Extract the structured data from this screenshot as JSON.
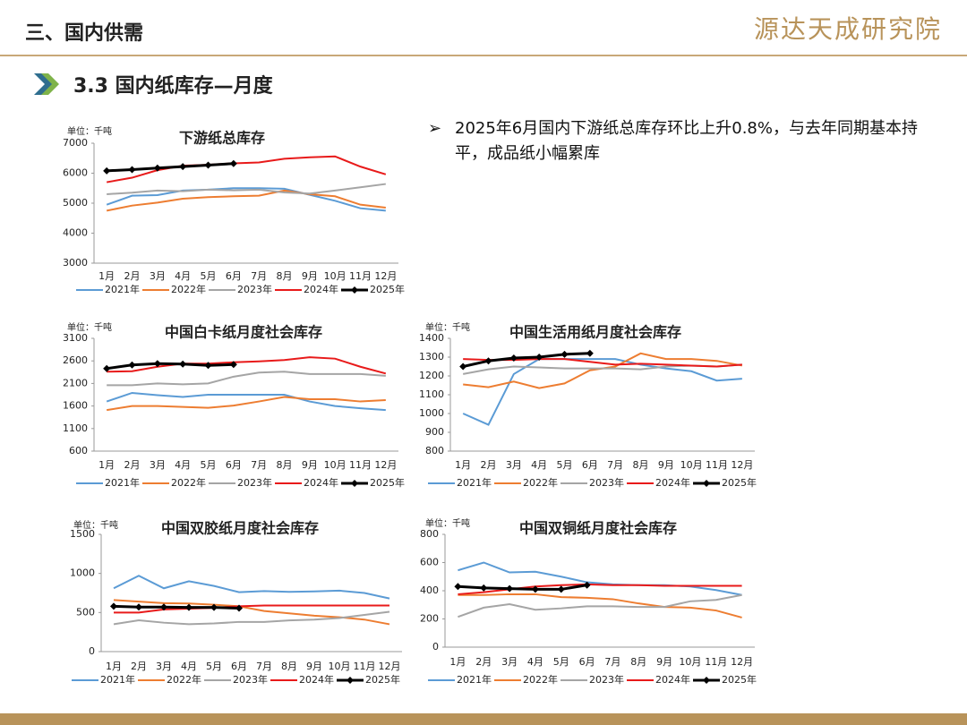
{
  "header": {
    "title": "三、国内供需",
    "logo": "源达天成研究院"
  },
  "section": "3.3 国内纸库存—月度",
  "bullet": "2025年6月国内下游纸总库存环比上升0.8%，与去年同期基本持平，成品纸小幅累库",
  "chart_data": [
    {
      "type": "line",
      "title": "下游纸总库存",
      "unit": "单位：千吨",
      "categories": [
        "1月",
        "2月",
        "3月",
        "4月",
        "5月",
        "6月",
        "7月",
        "8月",
        "9月",
        "10月",
        "11月",
        "12月"
      ],
      "ylim": [
        3000,
        7000
      ],
      "yticks": [
        3000,
        4000,
        5000,
        6000,
        7000
      ],
      "series": [
        {
          "name": "2021年",
          "color": "#5b9bd5",
          "values": [
            4950,
            5250,
            5270,
            5420,
            5450,
            5500,
            5500,
            5480,
            5280,
            5080,
            4830,
            4750
          ]
        },
        {
          "name": "2022年",
          "color": "#ed7d31",
          "values": [
            4750,
            4920,
            5020,
            5150,
            5200,
            5230,
            5250,
            5420,
            5300,
            5230,
            4950,
            4850
          ]
        },
        {
          "name": "2023年",
          "color": "#a5a5a5",
          "values": [
            5300,
            5350,
            5420,
            5400,
            5450,
            5430,
            5450,
            5360,
            5320,
            5420,
            5530,
            5640
          ]
        },
        {
          "name": "2024年",
          "color": "#e81a1a",
          "values": [
            5700,
            5850,
            6100,
            6250,
            6280,
            6330,
            6360,
            6480,
            6530,
            6560,
            6220,
            5960
          ]
        },
        {
          "name": "2025年",
          "color": "#000000",
          "marker": true,
          "values": [
            6080,
            6120,
            6170,
            6220,
            6270,
            6320,
            null,
            null,
            null,
            null,
            null,
            null
          ]
        }
      ]
    },
    {
      "type": "line",
      "title": "中国白卡纸月度社会库存",
      "unit": "单位：千吨",
      "categories": [
        "1月",
        "2月",
        "3月",
        "4月",
        "5月",
        "6月",
        "7月",
        "8月",
        "9月",
        "10月",
        "11月",
        "12月"
      ],
      "ylim": [
        600,
        3100
      ],
      "yticks": [
        600,
        1100,
        1600,
        2100,
        2600,
        3100
      ],
      "series": [
        {
          "name": "2021年",
          "color": "#5b9bd5",
          "values": [
            1700,
            1890,
            1840,
            1800,
            1850,
            1850,
            1850,
            1850,
            1700,
            1600,
            1550,
            1510
          ]
        },
        {
          "name": "2022年",
          "color": "#ed7d31",
          "values": [
            1510,
            1600,
            1600,
            1580,
            1560,
            1610,
            1700,
            1800,
            1750,
            1750,
            1700,
            1730
          ]
        },
        {
          "name": "2023年",
          "color": "#a5a5a5",
          "values": [
            2060,
            2060,
            2100,
            2080,
            2100,
            2250,
            2340,
            2360,
            2310,
            2310,
            2310,
            2270
          ]
        },
        {
          "name": "2024年",
          "color": "#e81a1a",
          "values": [
            2360,
            2370,
            2470,
            2540,
            2540,
            2570,
            2590,
            2620,
            2680,
            2650,
            2470,
            2320
          ]
        },
        {
          "name": "2025年",
          "color": "#000000",
          "marker": true,
          "values": [
            2430,
            2510,
            2540,
            2530,
            2500,
            2520,
            null,
            null,
            null,
            null,
            null,
            null
          ]
        }
      ]
    },
    {
      "type": "line",
      "title": "中国生活用纸月度社会库存",
      "unit": "单位：千吨",
      "categories": [
        "1月",
        "2月",
        "3月",
        "4月",
        "5月",
        "6月",
        "7月",
        "8月",
        "9月",
        "10月",
        "11月",
        "12月"
      ],
      "ylim": [
        800,
        1400
      ],
      "yticks": [
        800,
        900,
        1000,
        1100,
        1200,
        1300,
        1400
      ],
      "series": [
        {
          "name": "2021年",
          "color": "#5b9bd5",
          "values": [
            1000,
            940,
            1210,
            1290,
            1290,
            1290,
            1290,
            1260,
            1240,
            1225,
            1175,
            1185
          ]
        },
        {
          "name": "2022年",
          "color": "#ed7d31",
          "values": [
            1155,
            1140,
            1170,
            1135,
            1160,
            1230,
            1250,
            1320,
            1290,
            1290,
            1280,
            1255
          ]
        },
        {
          "name": "2023年",
          "color": "#a5a5a5",
          "values": [
            1210,
            1235,
            1250,
            1245,
            1240,
            1240,
            1240,
            1235,
            1250,
            1255,
            1250,
            1260
          ]
        },
        {
          "name": "2024年",
          "color": "#e81a1a",
          "values": [
            1290,
            1285,
            1285,
            1290,
            1290,
            1275,
            1260,
            1265,
            1260,
            1255,
            1250,
            1260
          ]
        },
        {
          "name": "2025年",
          "color": "#000000",
          "marker": true,
          "values": [
            1250,
            1280,
            1295,
            1300,
            1315,
            1320,
            null,
            null,
            null,
            null,
            null,
            null
          ]
        }
      ]
    },
    {
      "type": "line",
      "title": "中国双胶纸月度社会库存",
      "unit": "单位：千吨",
      "categories": [
        "1月",
        "2月",
        "3月",
        "4月",
        "5月",
        "6月",
        "7月",
        "8月",
        "9月",
        "10月",
        "11月",
        "12月"
      ],
      "ylim": [
        0,
        1500
      ],
      "yticks": [
        0,
        500,
        1000,
        1500
      ],
      "series": [
        {
          "name": "2021年",
          "color": "#5b9bd5",
          "values": [
            810,
            970,
            810,
            900,
            840,
            760,
            775,
            765,
            770,
            780,
            750,
            680
          ]
        },
        {
          "name": "2022年",
          "color": "#ed7d31",
          "values": [
            660,
            640,
            620,
            615,
            600,
            580,
            520,
            490,
            460,
            440,
            410,
            350
          ]
        },
        {
          "name": "2023年",
          "color": "#a5a5a5",
          "values": [
            350,
            400,
            370,
            350,
            360,
            380,
            380,
            400,
            410,
            430,
            470,
            510
          ]
        },
        {
          "name": "2024年",
          "color": "#e81a1a",
          "values": [
            500,
            500,
            540,
            550,
            560,
            580,
            590,
            590,
            590,
            590,
            590,
            590
          ]
        },
        {
          "name": "2025年",
          "color": "#000000",
          "marker": true,
          "values": [
            580,
            570,
            570,
            565,
            565,
            555,
            null,
            null,
            null,
            null,
            null,
            null
          ]
        }
      ]
    },
    {
      "type": "line",
      "title": "中国双铜纸月度社会库存",
      "unit": "单位：千吨",
      "categories": [
        "1月",
        "2月",
        "3月",
        "4月",
        "5月",
        "6月",
        "7月",
        "8月",
        "9月",
        "10月",
        "11月",
        "12月"
      ],
      "ylim": [
        0,
        800
      ],
      "yticks": [
        0,
        200,
        400,
        600,
        800
      ],
      "series": [
        {
          "name": "2021年",
          "color": "#5b9bd5",
          "values": [
            545,
            600,
            530,
            535,
            500,
            460,
            445,
            440,
            440,
            430,
            405,
            370
          ]
        },
        {
          "name": "2022年",
          "color": "#ed7d31",
          "values": [
            370,
            370,
            375,
            375,
            355,
            350,
            340,
            310,
            285,
            280,
            260,
            210
          ]
        },
        {
          "name": "2023年",
          "color": "#a5a5a5",
          "values": [
            215,
            280,
            305,
            265,
            275,
            290,
            290,
            285,
            285,
            325,
            335,
            370
          ]
        },
        {
          "name": "2024年",
          "color": "#e81a1a",
          "values": [
            375,
            390,
            410,
            430,
            440,
            445,
            440,
            440,
            435,
            435,
            435,
            435
          ]
        },
        {
          "name": "2025年",
          "color": "#000000",
          "marker": true,
          "values": [
            430,
            420,
            415,
            410,
            410,
            440,
            null,
            null,
            null,
            null,
            null,
            null
          ]
        }
      ]
    }
  ]
}
